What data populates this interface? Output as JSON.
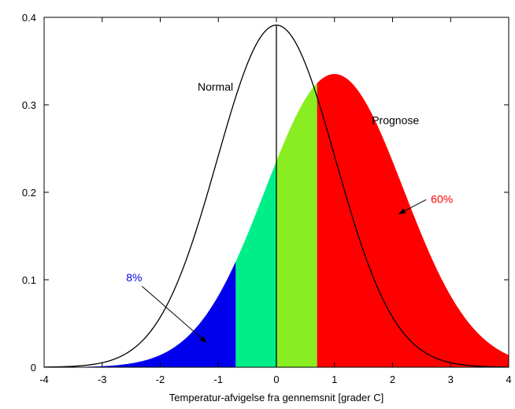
{
  "chart_data": {
    "type": "area",
    "title": "",
    "xlabel": "Temperatur-afvigelse fra gennemsnit [grader C]",
    "ylabel": "",
    "xlim": [
      -4,
      4
    ],
    "ylim": [
      0,
      0.4
    ],
    "x_ticks": [
      "-4",
      "-3",
      "-2",
      "-1",
      "0",
      "1",
      "2",
      "3",
      "4"
    ],
    "y_ticks": [
      "0",
      "0.1",
      "0.2",
      "0.3",
      "0.4"
    ],
    "grid": false,
    "series": [
      {
        "name": "Normal",
        "distribution": "normal",
        "mean": 0,
        "sd": 1.02,
        "style": "outline",
        "color": "#000000"
      },
      {
        "name": "Prognose",
        "distribution": "normal",
        "mean": 1.0,
        "sd": 1.19,
        "style": "filled"
      }
    ],
    "regions": [
      {
        "from": -4,
        "to": -0.7,
        "color": "#0000ee"
      },
      {
        "from": -0.7,
        "to": 0,
        "color": "#00ee88"
      },
      {
        "from": 0,
        "to": 0.7,
        "color": "#88ee22"
      },
      {
        "from": 0.7,
        "to": 4,
        "color": "#ff0000"
      }
    ],
    "marker_line_x": 0,
    "annotations": [
      {
        "id": "normal",
        "text": "Normal",
        "x": -1.05,
        "y": 0.316,
        "color": "#000000"
      },
      {
        "id": "prognose",
        "text": "Prognose",
        "x": 2.05,
        "y": 0.278,
        "color": "#000000"
      },
      {
        "id": "pct-low",
        "text": "8%",
        "x": -2.45,
        "y": 0.098,
        "color": "#0000ee",
        "arrow_to": [
          -1.2,
          0.028
        ]
      },
      {
        "id": "pct-high",
        "text": "60%",
        "x": 2.85,
        "y": 0.188,
        "color": "#ff0000",
        "arrow_to": [
          2.1,
          0.175
        ]
      }
    ]
  }
}
